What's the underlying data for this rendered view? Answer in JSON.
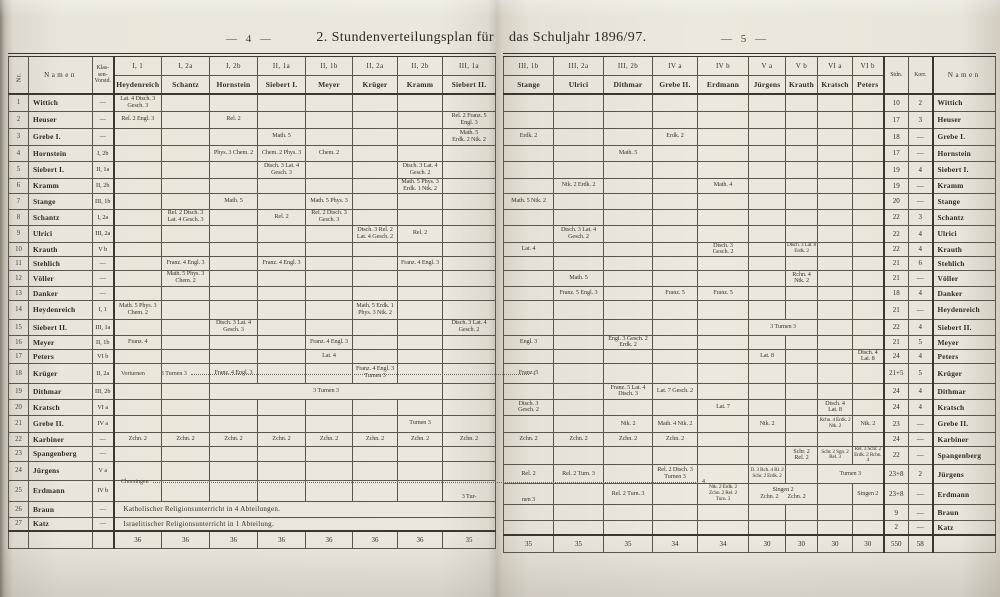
{
  "page": {
    "left_page_no": "— 4 —",
    "right_page_no": "— 5 —",
    "title_left": "2. Stundenverteilungsplan für",
    "title_right": "das Schuljahr 1896/97."
  },
  "table": {
    "corner": {
      "nr": "Nr.",
      "namen": "Namen",
      "vorstand": "Klas-\nsen-\nVorstd.",
      "stdn": "Stdn.",
      "korr": "Korr.",
      "namen_right": "Namen"
    },
    "columns_left": [
      {
        "k": "I, 1",
        "l": "Heydenreich"
      },
      {
        "k": "I, 2a",
        "l": "Schantz"
      },
      {
        "k": "I, 2b",
        "l": "Hornstein"
      },
      {
        "k": "II, 1a",
        "l": "Siebert I."
      },
      {
        "k": "II, 1b",
        "l": "Meyer"
      },
      {
        "k": "II, 2a",
        "l": "Krüger"
      },
      {
        "k": "II, 2b",
        "l": "Kramm"
      },
      {
        "k": "III, 1a",
        "l": "Siebert II."
      }
    ],
    "columns_right": [
      {
        "k": "III, 1b",
        "l": "Stange"
      },
      {
        "k": "III, 2a",
        "l": "Ulrici"
      },
      {
        "k": "III, 2b",
        "l": "Dithmar"
      },
      {
        "k": "IV a",
        "l": "Grebe II."
      },
      {
        "k": "IV b",
        "l": "Erdmann"
      },
      {
        "k": "V a",
        "l": "Jürgens"
      },
      {
        "k": "V b",
        "l": "Krauth"
      },
      {
        "k": "VI a",
        "l": "Kratsch"
      },
      {
        "k": "VI b",
        "l": "Peters"
      }
    ],
    "rows": [
      {
        "nr": "1",
        "name": "Wittich",
        "vorst": "—",
        "stdn": "10",
        "korr": "2",
        "left": [
          {
            "c": 0,
            "t": "Lat. 4 Dtsch. 3\nGesch. 3"
          }
        ],
        "right": []
      },
      {
        "nr": "2",
        "name": "Heuser",
        "vorst": "—",
        "stdn": "17",
        "korr": "3",
        "left": [
          {
            "c": 0,
            "t": "Rel. 2 Engl. 3"
          },
          {
            "c": 2,
            "t": "Rel. 2"
          },
          {
            "c": 7,
            "t": "Rel. 2 Franz. 5\nEngl. 3"
          }
        ],
        "right": []
      },
      {
        "nr": "3",
        "name": "Grebe I.",
        "vorst": "—",
        "stdn": "18",
        "korr": "—",
        "left": [
          {
            "c": 3,
            "t": "Math. 5"
          },
          {
            "c": 7,
            "t": "Math. 5\nErdk. 2 Ntk. 2"
          }
        ],
        "right": [
          {
            "c": 0,
            "t": "Erdk. 2"
          },
          {
            "c": 3,
            "t": "Erdk. 2"
          }
        ]
      },
      {
        "nr": "4",
        "name": "Hornstein",
        "vorst": "I, 2b",
        "stdn": "17",
        "korr": "—",
        "left": [
          {
            "c": 2,
            "t": "Phys. 3 Chem. 2"
          },
          {
            "c": 3,
            "t": "Chem. 2 Phys. 3"
          },
          {
            "c": 4,
            "t": "Chem. 2"
          }
        ],
        "right": [
          {
            "c": 2,
            "t": "Math. 5"
          }
        ]
      },
      {
        "nr": "5",
        "name": "Siebert I.",
        "vorst": "II, 1a",
        "stdn": "19",
        "korr": "4",
        "left": [
          {
            "c": 3,
            "t": "Dtsch. 3 Lat. 4\nGesch. 3"
          },
          {
            "c": 6,
            "t": "Dtsch. 3 Lat. 4\nGesch. 2"
          }
        ],
        "right": []
      },
      {
        "nr": "6",
        "name": "Kramm",
        "vorst": "II, 2b",
        "stdn": "19",
        "korr": "—",
        "left": [
          {
            "c": 6,
            "t": "Math. 5 Phys. 3\nErdk. 1 Ntk. 2"
          }
        ],
        "right": [
          {
            "c": 1,
            "t": "Ntk. 2 Erdk. 2"
          },
          {
            "c": 4,
            "t": "Math. 4"
          }
        ]
      },
      {
        "nr": "7",
        "name": "Stange",
        "vorst": "III, 1b",
        "stdn": "20",
        "korr": "—",
        "left": [
          {
            "c": 2,
            "t": "Math. 5"
          },
          {
            "c": 4,
            "t": "Math. 5 Phys. 3"
          }
        ],
        "right": [
          {
            "c": 0,
            "t": "Math. 5 Ntk. 2"
          }
        ]
      },
      {
        "nr": "8",
        "name": "Schantz",
        "vorst": "I, 2a",
        "stdn": "22",
        "korr": "3",
        "left": [
          {
            "c": 1,
            "t": "Rel. 2 Dtsch. 3\nLat. 4 Gesch. 3"
          },
          {
            "c": 3,
            "t": "Rel. 2"
          },
          {
            "c": 4,
            "t": "Rel. 2 Dtsch. 3\nGesch. 3"
          }
        ],
        "right": []
      },
      {
        "nr": "9",
        "name": "Ulrici",
        "vorst": "III, 2a",
        "stdn": "22",
        "korr": "4",
        "left": [
          {
            "c": 5,
            "t": "Dtsch. 3 Rel. 2\nLat. 4 Gesch. 2"
          },
          {
            "c": 6,
            "t": "Rel. 2"
          }
        ],
        "right": [
          {
            "c": 1,
            "t": "Dtsch. 3 Lat. 4\nGesch. 2"
          }
        ]
      },
      {
        "nr": "10",
        "name": "Krauth",
        "vorst": "V b",
        "stdn": "22",
        "korr": "4",
        "left": [],
        "right": [
          {
            "c": 0,
            "t": "Lat. 4"
          },
          {
            "c": 4,
            "t": "Dtsch. 3\nGesch. 2"
          },
          {
            "c": 6,
            "t": "Dtsch. 3 Lat. 8\nErdk. 2",
            "f": "sm"
          }
        ]
      },
      {
        "nr": "11",
        "name": "Stehlich",
        "vorst": "—",
        "stdn": "21",
        "korr": "6",
        "left": [
          {
            "c": 1,
            "t": "Franz. 4 Engl. 3"
          },
          {
            "c": 3,
            "t": "Franz. 4 Engl. 3"
          },
          {
            "c": 6,
            "t": "Franz. 4 Engl. 3"
          }
        ],
        "right": []
      },
      {
        "nr": "12",
        "name": "Völler",
        "vorst": "—",
        "stdn": "21",
        "korr": "—",
        "left": [
          {
            "c": 1,
            "t": "Math. 5 Phys. 3\nChem. 2"
          }
        ],
        "right": [
          {
            "c": 1,
            "t": "Math. 5"
          },
          {
            "c": 6,
            "t": "Rchn. 4\nNtk. 2"
          }
        ]
      },
      {
        "nr": "13",
        "name": "Danker",
        "vorst": "—",
        "stdn": "18",
        "korr": "4",
        "left": [],
        "right": [
          {
            "c": 1,
            "t": "Franz. 5 Engl. 3"
          },
          {
            "c": 3,
            "t": "Franz. 5"
          },
          {
            "c": 4,
            "t": "Franz. 5"
          }
        ]
      },
      {
        "nr": "14",
        "name": "Heydenreich",
        "vorst": "I, 1",
        "stdn": "21",
        "korr": "—",
        "left": [
          {
            "c": 0,
            "t": "Math. 5 Phys. 3\nChem. 2"
          },
          {
            "c": 5,
            "t": "Math. 5 Erdk. 1\nPhys. 3 Ntk. 2"
          }
        ],
        "right": []
      },
      {
        "nr": "15",
        "name": "Siebert II.",
        "vorst": "III, 1a",
        "stdn": "22",
        "korr": "4",
        "left": [
          {
            "c": 2,
            "t": "Dtsch. 3 Lat. 4\nGesch. 3"
          },
          {
            "c": 7,
            "t": "Dtsch. 3 Lat. 4\nGesch. 2"
          }
        ],
        "right": [
          {
            "c": 5,
            "s": 2,
            "t": "3 Turnen 3"
          }
        ]
      },
      {
        "nr": "16",
        "name": "Meyer",
        "vorst": "II, 1b",
        "stdn": "21",
        "korr": "5",
        "left": [
          {
            "c": 0,
            "t": "Franz. 4"
          },
          {
            "c": 4,
            "t": "Franz. 4 Engl. 3"
          }
        ],
        "right": [
          {
            "c": 0,
            "t": "Engl. 3"
          },
          {
            "c": 2,
            "t": "Engl. 3 Gesch. 2\nErdk. 2"
          }
        ]
      },
      {
        "nr": "17",
        "name": "Peters",
        "vorst": "VI b",
        "stdn": "24",
        "korr": "4",
        "left": [
          {
            "c": 4,
            "t": "Lat. 4"
          }
        ],
        "right": [
          {
            "c": 5,
            "t": "Lat. 8"
          },
          {
            "c": 8,
            "t": "Dtsch. 4\nLat. 8"
          }
        ]
      },
      {
        "nr": "18",
        "name": "Krüger",
        "vorst": "II, 2a",
        "stdn": "21+5",
        "korr": "5",
        "left": [
          {
            "c": 2,
            "t": "Franz. 4 Engl. 3"
          },
          {
            "c": 5,
            "t": "Franz. 4 Engl. 3\nTurnen 3"
          }
        ],
        "right": [
          {
            "c": 0,
            "t": "Franz. 5"
          }
        ]
      },
      {
        "nr": "19",
        "name": "Dithmar",
        "vorst": "III, 2b",
        "stdn": "24",
        "korr": "4",
        "left": [
          {
            "c": 2,
            "s": 5,
            "t": "3 Turnen 3"
          }
        ],
        "right": [
          {
            "c": 2,
            "t": "Franz. 5 Lat. 4\nDtsch. 3"
          },
          {
            "c": 3,
            "t": "Lat. 7 Gesch. 2"
          }
        ]
      },
      {
        "nr": "20",
        "name": "Kratsch",
        "vorst": "VI a",
        "stdn": "24",
        "korr": "4",
        "left": [],
        "right": [
          {
            "c": 0,
            "t": "Dtsch. 3\nGesch. 2"
          },
          {
            "c": 4,
            "t": "Lat. 7"
          },
          {
            "c": 7,
            "t": "Dtsch. 4\nLat. 8"
          }
        ]
      },
      {
        "nr": "21",
        "name": "Grebe II.",
        "vorst": "IV a",
        "stdn": "23",
        "korr": "—",
        "left": [
          {
            "c": 6,
            "t": "Turnen 3"
          }
        ],
        "right": [
          {
            "c": 2,
            "t": "Ntk. 2"
          },
          {
            "c": 3,
            "t": "Math. 4 Ntk. 2"
          },
          {
            "c": 5,
            "t": "Ntk. 2"
          },
          {
            "c": 7,
            "t": "Rchn. 4 Erdk. 2\nNtk. 2",
            "f": "sm"
          },
          {
            "c": 8,
            "t": "Ntk. 2"
          }
        ]
      },
      {
        "nr": "22",
        "name": "Karbiner",
        "vorst": "—",
        "stdn": "24",
        "korr": "—",
        "left": [
          {
            "c": 0,
            "t": "Zchn. 2"
          },
          {
            "c": 1,
            "t": "Zchn. 2"
          },
          {
            "c": 2,
            "t": "Zchn. 2"
          },
          {
            "c": 3,
            "t": "Zchn. 2"
          },
          {
            "c": 4,
            "t": "Zchn. 2"
          },
          {
            "c": 5,
            "t": "Zchn. 2"
          },
          {
            "c": 6,
            "t": "Zchn. 2"
          },
          {
            "c": 7,
            "t": "Zchn. 2"
          }
        ],
        "right": [
          {
            "c": 0,
            "t": "Zchn. 2"
          },
          {
            "c": 1,
            "t": "Zchn. 2"
          },
          {
            "c": 2,
            "t": "Zchn. 2"
          },
          {
            "c": 3,
            "t": "Zchn. 2"
          }
        ]
      },
      {
        "nr": "23",
        "name": "Spangenberg",
        "vorst": "—",
        "stdn": "22",
        "korr": "—",
        "left": [],
        "right": [
          {
            "c": 6,
            "t": "Schr. 2\nRel. 2"
          },
          {
            "c": 7,
            "t": "Schr. 2 Sgn. 2\nRel. 3",
            "f": "sm"
          },
          {
            "c": 8,
            "t": "Rel. 3 Schr. 2\nErdk. 2 Rchn. 4",
            "f": "sm"
          }
        ]
      },
      {
        "nr": "24",
        "name": "Jürgens",
        "vorst": "V a",
        "stdn": "23+8",
        "korr": "2",
        "left": [],
        "right": [
          {
            "c": 0,
            "t": "Rel. 2"
          },
          {
            "c": 1,
            "t": "Rel. 2 Turn. 3"
          },
          {
            "c": 3,
            "t": "Rel. 2 Dtsch. 3\nTurnen 3"
          },
          {
            "c": 5,
            "t": "D. 3 Rch. 4 Rl. 2\nSchr. 2 Erdk. 2",
            "f": "sm"
          },
          {
            "c": 7,
            "s": 2,
            "t": "Turnen 3"
          }
        ]
      },
      {
        "nr": "25",
        "name": "Erdmann",
        "vorst": "IV b",
        "stdn": "23+8",
        "korr": "—",
        "left": [
          {
            "c": 7,
            "t": "3 Tur-",
            "b": 1
          }
        ],
        "right": [
          {
            "c": 0,
            "t": "nen 3",
            "b": 1
          },
          {
            "c": 2,
            "t": "Rel. 2 Turn. 3"
          },
          {
            "c": 4,
            "t": "Ntk. 2 Erdk. 2\nZchn. 2 Rel. 2\nTurn. 3",
            "f": "sm"
          },
          {
            "c": 5,
            "s": 2,
            "t": "Singen 2\nZchn. 2   Zchn. 2"
          },
          {
            "c": 8,
            "t": "Singen 2"
          }
        ]
      },
      {
        "nr": "26",
        "name": "Braun",
        "vorst": "—",
        "stdn": "9",
        "korr": "—",
        "full": "Katholischer Religionsunterricht in 4 Abteilungen.",
        "left": [],
        "right": []
      },
      {
        "nr": "27",
        "name": "Katz",
        "vorst": "—",
        "stdn": "2",
        "korr": "—",
        "full": "Israelitischer Religionsunterricht in 1 Abteilung.",
        "left": [],
        "right": []
      }
    ],
    "totals": {
      "left": [
        "36",
        "36",
        "36",
        "36",
        "36",
        "36",
        "36",
        "35"
      ],
      "right": [
        "35",
        "35",
        "35",
        "34",
        "34",
        "30",
        "30",
        "30",
        "30"
      ],
      "stdn": "550",
      "korr": "58"
    },
    "annotations": {
      "vorturnen_label": "Vorturnen",
      "vorturnen_extra": "3 Turnen 3",
      "vorturnen_value": "1",
      "chorsingen_label": "Chorsingen",
      "chorsingen_value": "4"
    }
  }
}
